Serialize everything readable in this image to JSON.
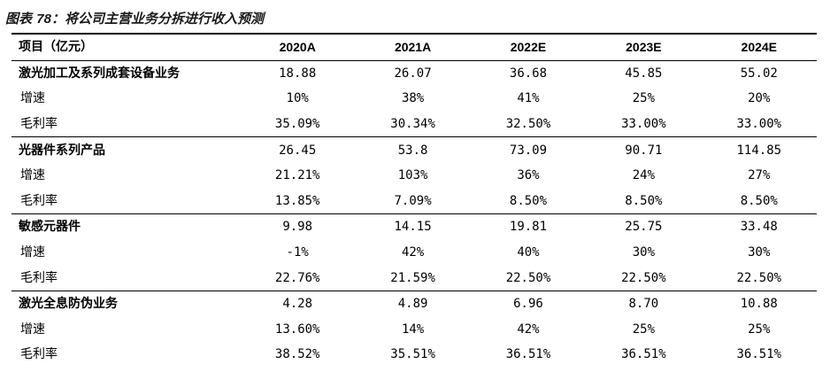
{
  "caption": {
    "prefix": "图表",
    "number": "78",
    "text": "：将公司主营业务分拆进行收入预测"
  },
  "table": {
    "header": [
      "项目（亿元）",
      "2020A",
      "2021A",
      "2022E",
      "2023E",
      "2024E"
    ],
    "rows": [
      {
        "label": "激光加工及系列成套设备业务",
        "type": "segment",
        "values": [
          "18.88",
          "26.07",
          "36.68",
          "45.85",
          "55.02"
        ]
      },
      {
        "label": "增速",
        "type": "sub",
        "values": [
          "10%",
          "38%",
          "41%",
          "25%",
          "20%"
        ]
      },
      {
        "label": "毛利率",
        "type": "sub",
        "values": [
          "35.09%",
          "30.34%",
          "32.50%",
          "33.00%",
          "33.00%"
        ]
      },
      {
        "label": "光器件系列产品",
        "type": "segment",
        "values": [
          "26.45",
          "53.8",
          "73.09",
          "90.71",
          "114.85"
        ]
      },
      {
        "label": "增速",
        "type": "sub",
        "values": [
          "21.21%",
          "103%",
          "36%",
          "24%",
          "27%"
        ]
      },
      {
        "label": "毛利率",
        "type": "sub",
        "values": [
          "13.85%",
          "7.09%",
          "8.50%",
          "8.50%",
          "8.50%"
        ]
      },
      {
        "label": "敏感元器件",
        "type": "segment",
        "values": [
          "9.98",
          "14.15",
          "19.81",
          "25.75",
          "33.48"
        ]
      },
      {
        "label": "增速",
        "type": "sub",
        "values": [
          "-1%",
          "42%",
          "40%",
          "30%",
          "30%"
        ]
      },
      {
        "label": "毛利率",
        "type": "sub",
        "values": [
          "22.76%",
          "21.59%",
          "22.50%",
          "22.50%",
          "22.50%"
        ]
      },
      {
        "label": "激光全息防伪业务",
        "type": "segment",
        "values": [
          "4.28",
          "4.89",
          "6.96",
          "8.70",
          "10.88"
        ]
      },
      {
        "label": "增速",
        "type": "sub",
        "values": [
          "13.60%",
          "14%",
          "42%",
          "25%",
          "25%"
        ]
      },
      {
        "label": "毛利率",
        "type": "sub",
        "values": [
          "38.52%",
          "35.51%",
          "36.51%",
          "36.51%",
          "36.51%"
        ]
      }
    ]
  }
}
